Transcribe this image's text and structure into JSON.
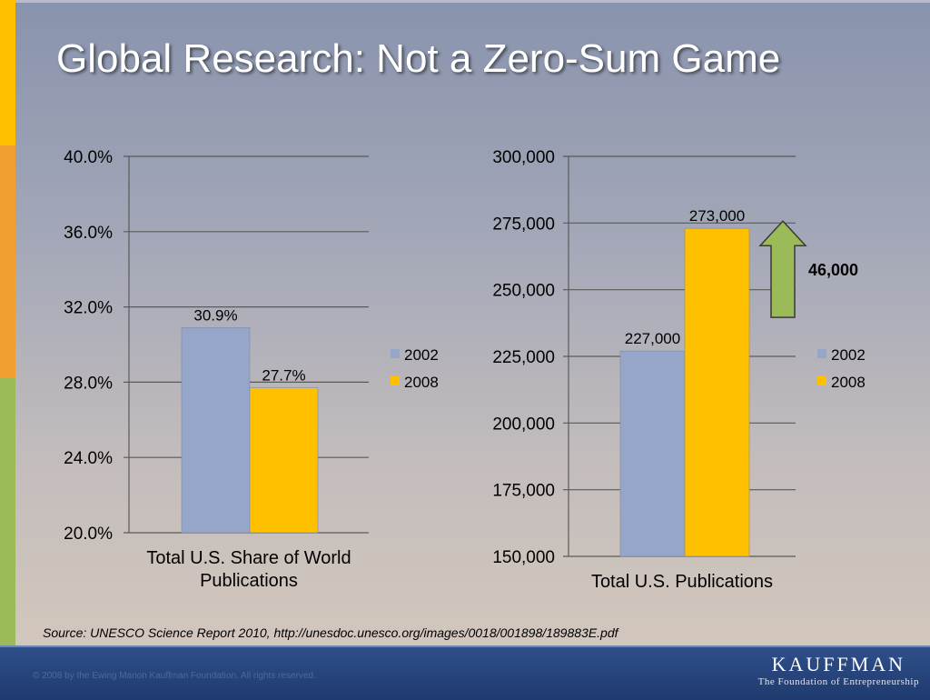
{
  "slide": {
    "title": "Global Research: Not a Zero-Sum Game",
    "source": "Source: UNESCO Science Report 2010, http://unesdoc.unesco.org/images/0018/001898/189883E.pdf",
    "copyright": "© 2008 by the Ewing Marion Kauffman Foundation. All rights reserved.",
    "logo_name": "KAUFFMAN",
    "logo_tagline": "The Foundation of Entrepreneurship"
  },
  "colors": {
    "series_2002": "#95a6c8",
    "series_2008": "#ffc000",
    "arrow": "#9bbb59",
    "gridline": "#5a5a5a",
    "stripe_yellow": "#ffc000",
    "stripe_orange": "#f0a030",
    "stripe_green": "#9bbb59"
  },
  "chart_data": [
    {
      "type": "bar",
      "xlabel_lines": [
        "Total U.S. Share of World",
        "Publications"
      ],
      "ylim": [
        20.0,
        40.0
      ],
      "yticks": [
        {
          "value": 20,
          "label": "20.0%"
        },
        {
          "value": 24,
          "label": "24.0%"
        },
        {
          "value": 28,
          "label": "28.0%"
        },
        {
          "value": 32,
          "label": "32.0%"
        },
        {
          "value": 36,
          "label": "36.0%"
        },
        {
          "value": 40,
          "label": "40.0%"
        }
      ],
      "grid": true,
      "legend_position": "right",
      "series": [
        {
          "name": "2002",
          "value": 30.9,
          "data_label": "30.9%"
        },
        {
          "name": "2008",
          "value": 27.7,
          "data_label": "27.7%"
        }
      ]
    },
    {
      "type": "bar",
      "xlabel_lines": [
        "Total U.S. Publications"
      ],
      "ylim": [
        150000,
        300000
      ],
      "yticks": [
        {
          "value": 150000,
          "label": "150,000"
        },
        {
          "value": 175000,
          "label": "175,000"
        },
        {
          "value": 200000,
          "label": "200,000"
        },
        {
          "value": 225000,
          "label": "225,000"
        },
        {
          "value": 250000,
          "label": "250,000"
        },
        {
          "value": 275000,
          "label": "275,000"
        },
        {
          "value": 300000,
          "label": "300,000"
        }
      ],
      "grid": true,
      "legend_position": "right",
      "series": [
        {
          "name": "2002",
          "value": 227000,
          "data_label": "227,000"
        },
        {
          "name": "2008",
          "value": 273000,
          "data_label": "273,000"
        }
      ],
      "annotation": {
        "label": "46,000",
        "from": 227000,
        "to": 273000
      }
    }
  ]
}
